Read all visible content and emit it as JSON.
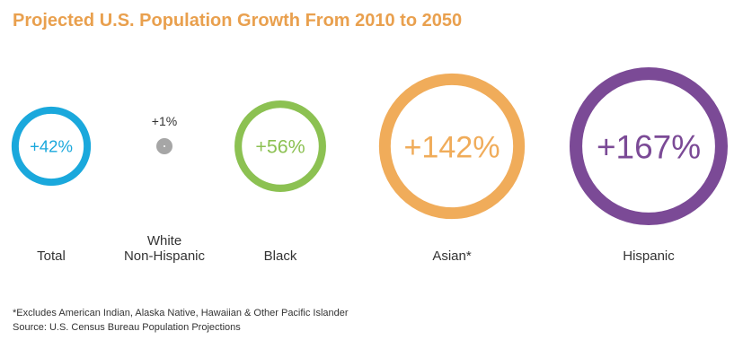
{
  "title": "Projected U.S. Population Growth From 2010 to 2050",
  "footnote": "*Excludes American Indian, Alaska Native, Hawaiian & Other Pacific Islander",
  "source": "Source: U.S. Census Bureau Population Projections",
  "chart_data": {
    "type": "bubble",
    "title": "Projected U.S. Population Growth From 2010 to 2050",
    "categories": [
      "Total",
      "White\nNon-Hispanic",
      "Black",
      "Asian*",
      "Hispanic"
    ],
    "values": [
      42,
      1,
      56,
      142,
      167
    ],
    "value_labels": [
      "+42%",
      "+1%",
      "+56%",
      "+142%",
      "+167%"
    ],
    "unit": "%",
    "colors": [
      "#1aa8dc",
      "#a6a6a6",
      "#8cc152",
      "#f0ac5a",
      "#7b4a96"
    ]
  }
}
